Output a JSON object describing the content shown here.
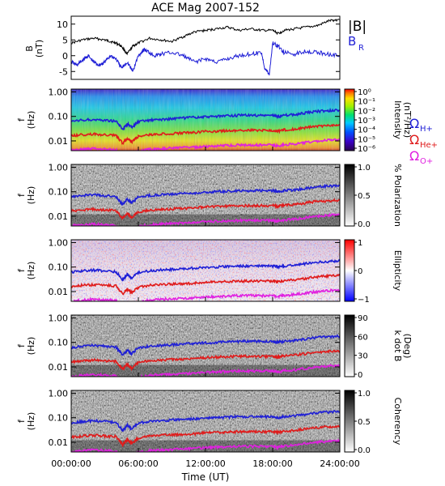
{
  "chart_data": {
    "type": "heatmap",
    "title": "ACE Mag 2007-152",
    "xlabel": "Time (UT)",
    "x_tick_labels": [
      "00:00:00",
      "06:00:00",
      "12:00:00",
      "18:00:00",
      "24:00:00"
    ],
    "x_ticks_hours": [
      0,
      6,
      12,
      18,
      24
    ],
    "xlim_hours": [
      0,
      24
    ],
    "freq_tick_labels": [
      "1.00",
      "0.10",
      "0.01"
    ],
    "freq_ticks": [
      1.0,
      0.1,
      0.01
    ],
    "freq_range": [
      0.004,
      1.3
    ],
    "freq_scale": "log",
    "gyro_labels": [
      {
        "main": "Ω",
        "sub": "H+",
        "color": "#1f1fd6"
      },
      {
        "main": "Ω",
        "sub": "He+",
        "color": "#e01b1b"
      },
      {
        "main": "Ω",
        "sub": "O+",
        "color": "#e020e0"
      }
    ],
    "gyro_frequencies": {
      "hours": [
        0,
        1,
        2,
        3,
        4,
        4.6,
        5,
        5.4,
        6,
        7,
        8,
        9,
        10,
        11,
        12,
        13,
        14,
        15,
        16,
        17,
        18,
        18.5,
        19,
        20,
        21,
        22,
        23,
        24
      ],
      "H": [
        0.06,
        0.07,
        0.075,
        0.07,
        0.065,
        0.03,
        0.05,
        0.035,
        0.06,
        0.07,
        0.075,
        0.08,
        0.085,
        0.09,
        0.095,
        0.1,
        0.105,
        0.11,
        0.11,
        0.11,
        0.11,
        0.1,
        0.11,
        0.12,
        0.14,
        0.16,
        0.17,
        0.18
      ],
      "He": [
        0.016,
        0.018,
        0.019,
        0.018,
        0.017,
        0.008,
        0.013,
        0.009,
        0.015,
        0.018,
        0.019,
        0.02,
        0.021,
        0.022,
        0.024,
        0.025,
        0.026,
        0.027,
        0.027,
        0.027,
        0.027,
        0.025,
        0.028,
        0.03,
        0.035,
        0.04,
        0.043,
        0.045
      ],
      "O": [
        0.004,
        0.0045,
        0.0048,
        0.0045,
        0.0043,
        0.002,
        0.0033,
        0.0023,
        0.0038,
        0.0045,
        0.0048,
        0.005,
        0.0053,
        0.0055,
        0.006,
        0.0063,
        0.0065,
        0.0068,
        0.0068,
        0.0068,
        0.0068,
        0.0063,
        0.007,
        0.0075,
        0.0088,
        0.01,
        0.011,
        0.0113
      ]
    },
    "mag_panel": {
      "ylabel": "B",
      "yunit": "(nT)",
      "ylim": [
        -7.5,
        12.5
      ],
      "y_ticks": [
        10,
        5,
        0,
        -5
      ],
      "y_tick_labels": [
        "10",
        "5",
        "0",
        "-5"
      ],
      "series": [
        {
          "name": "|B|",
          "color": "#000000",
          "hours": [
            0,
            1,
            2,
            3,
            3.5,
            4,
            4.5,
            5,
            5.5,
            6,
            7,
            8,
            9,
            10,
            11,
            12,
            13,
            14,
            15,
            16,
            17,
            18,
            18.5,
            19,
            20,
            21,
            22,
            23,
            24
          ],
          "values": [
            4,
            5,
            5.5,
            5,
            4.5,
            4,
            3,
            0.5,
            3,
            4,
            5.5,
            5,
            4.5,
            6,
            7.5,
            8,
            8.5,
            9,
            8,
            8.5,
            8,
            8,
            7,
            8,
            8.5,
            9,
            9.5,
            11,
            11.5
          ]
        },
        {
          "name": "B",
          "name_sub": "R",
          "color": "#1f1fd6",
          "hours": [
            0,
            0.5,
            1,
            1.5,
            2,
            2.5,
            3,
            3.5,
            4,
            4.5,
            5,
            5.5,
            6,
            6.5,
            7,
            7.5,
            8,
            9,
            10,
            11,
            12,
            13,
            14,
            15,
            16,
            17,
            17.3,
            17.7,
            18,
            18.5,
            19,
            20,
            21,
            22,
            23,
            24
          ],
          "values": [
            -2,
            -3,
            -1.5,
            0,
            -2,
            -3,
            -2,
            0,
            -1,
            -4,
            -2,
            -5,
            0,
            2,
            1,
            0,
            0.5,
            1,
            0,
            -2,
            -1,
            -2,
            -1,
            0,
            0.5,
            1,
            -4,
            -6,
            4,
            3,
            1,
            0.5,
            1.5,
            1,
            0.5,
            0
          ]
        }
      ]
    },
    "panels": [
      {
        "ylabel": "f",
        "yunit": "(Hz)",
        "colorbar": {
          "label": "Intensity",
          "unit": "(nT²/Hz)",
          "scale": "log",
          "tick_labels": [
            "10⁰",
            "10⁻¹",
            "10⁻²",
            "10⁻³",
            "10⁻⁴",
            "10⁻⁵",
            "10⁻⁶"
          ],
          "ticks": [
            1,
            0.1,
            0.01,
            0.001,
            0.0001,
            1e-05,
            1e-06
          ],
          "colormap": "rainbow"
        }
      },
      {
        "ylabel": "f",
        "yunit": "(Hz)",
        "colorbar": {
          "label": "% Polarization",
          "unit": "",
          "scale": "linear",
          "tick_labels": [
            "1.0",
            "0.5",
            "0.0"
          ],
          "ticks": [
            1.0,
            0.5,
            0.0
          ],
          "colormap": "gray"
        }
      },
      {
        "ylabel": "f",
        "yunit": "(Hz)",
        "colorbar": {
          "label": "Ellipticity",
          "unit": "",
          "scale": "linear",
          "tick_labels": [
            "1",
            "0",
            "−1"
          ],
          "ticks": [
            1,
            0,
            -1
          ],
          "colormap": "blue-white-red"
        }
      },
      {
        "ylabel": "f",
        "yunit": "(Hz)",
        "colorbar": {
          "label": "k dot B",
          "unit": "(Deg)",
          "scale": "linear",
          "tick_labels": [
            "90",
            "60",
            "30",
            "0"
          ],
          "ticks": [
            90,
            60,
            30,
            0
          ],
          "colormap": "gray"
        }
      },
      {
        "ylabel": "f",
        "yunit": "(Hz)",
        "colorbar": {
          "label": "Coherency",
          "unit": "",
          "scale": "linear",
          "tick_labels": [
            "1.0",
            "0.5",
            "0.0"
          ],
          "ticks": [
            1.0,
            0.5,
            0.0
          ],
          "colormap": "gray"
        }
      }
    ]
  }
}
